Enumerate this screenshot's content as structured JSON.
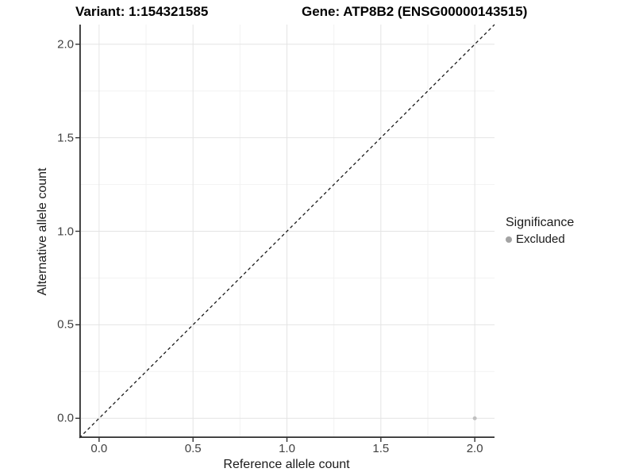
{
  "titles": {
    "variant": "Variant: 1:154321585",
    "gene": "Gene: ATP8B2 (ENSG00000143515)"
  },
  "legend": {
    "title": "Significance",
    "position": "right",
    "items": [
      {
        "label": "Excluded",
        "marker_color": "#a3a3a3",
        "marker_shape": "circle"
      }
    ]
  },
  "chart_data": {
    "type": "scatter",
    "title": "Variant: 1:154321585   Gene: ATP8B2 (ENSG00000143515)",
    "xlabel": "Reference allele count",
    "ylabel": "Alternative allele count",
    "xlim": [
      -0.105,
      2.105
    ],
    "ylim": [
      -0.105,
      2.105
    ],
    "x_ticks": [
      0.0,
      0.5,
      1.0,
      1.5,
      2.0
    ],
    "y_ticks": [
      0.0,
      0.5,
      1.0,
      1.5,
      2.0
    ],
    "x_tick_labels": [
      "0.0",
      "0.5",
      "1.0",
      "1.5",
      "2.0"
    ],
    "y_tick_labels": [
      "0.0",
      "0.5",
      "1.0",
      "1.5",
      "2.0"
    ],
    "x_minor_ticks": [
      0.25,
      0.75,
      1.25,
      1.75
    ],
    "y_minor_ticks": [
      0.25,
      0.75,
      1.25,
      1.75
    ],
    "grid": true,
    "legend_position": "right",
    "series": [
      {
        "name": "Excluded",
        "color": "#c0c0c0",
        "marker_radius": 2.5,
        "points": [
          {
            "x": 2.0,
            "y": 0.0
          }
        ]
      }
    ],
    "reference_line": {
      "kind": "identity",
      "style": "dashed",
      "color": "#1a1a1a",
      "from": [
        -0.105,
        -0.105
      ],
      "to": [
        2.105,
        2.105
      ]
    }
  },
  "colors": {
    "grid_major": "#e4e4e4",
    "grid_minor": "#f2f2f2",
    "axis_line": "#2e2e2e",
    "tick_mark": "#333333",
    "tick_text": "#404040",
    "background": "#ffffff"
  }
}
